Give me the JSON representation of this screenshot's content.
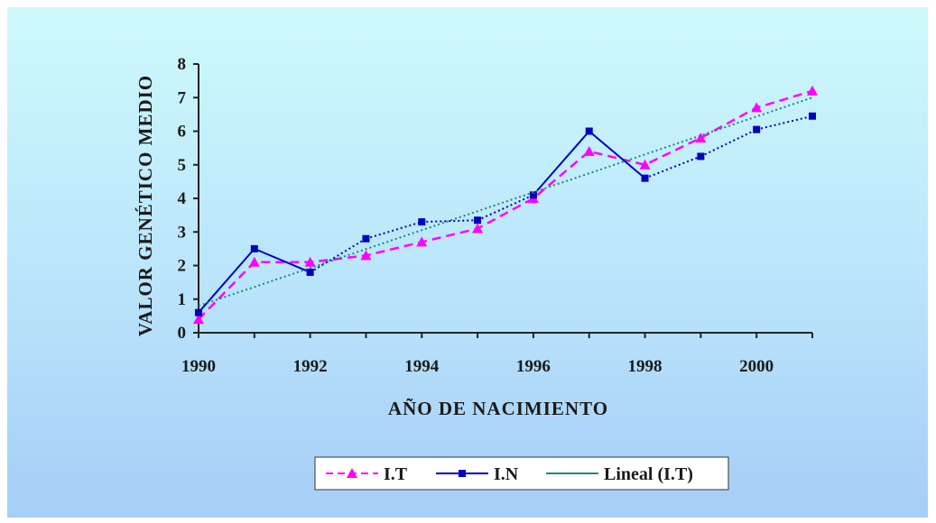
{
  "chart_data": {
    "type": "line",
    "title": "",
    "xlabel": "AÑO DE NACIMIENTO",
    "ylabel": "VALOR GENÉTICO MEDIO",
    "x": [
      1990,
      1991,
      1992,
      1993,
      1994,
      1995,
      1996,
      1997,
      1998,
      1999,
      2000,
      2001
    ],
    "x_tick_labels": [
      "1990",
      "1992",
      "1994",
      "1996",
      "1998",
      "2000"
    ],
    "y_tick_labels": [
      "0",
      "1",
      "2",
      "3",
      "4",
      "5",
      "6",
      "7",
      "8"
    ],
    "xlim": [
      1990,
      2001
    ],
    "ylim": [
      0,
      8
    ],
    "grid": false,
    "legend_position": "bottom",
    "series": [
      {
        "name": "I.T",
        "color": "#ff00ff",
        "marker": "triangle",
        "line_style": "dashed",
        "values": [
          0.4,
          2.1,
          2.1,
          2.3,
          2.7,
          3.1,
          4.0,
          5.4,
          5.0,
          5.8,
          6.7,
          7.2
        ]
      },
      {
        "name": "I.N",
        "color": "#0000c0",
        "marker": "square",
        "line_style": "mixed",
        "values": [
          0.6,
          2.5,
          1.8,
          2.8,
          3.3,
          3.35,
          4.1,
          6.0,
          4.6,
          5.25,
          6.05,
          6.45
        ]
      },
      {
        "name": "Lineal (I.T)",
        "color": "#1a8a7a",
        "marker": "none",
        "line_style": "dotted",
        "values": [
          0.8,
          7.0
        ],
        "x": [
          1990,
          2001
        ]
      }
    ]
  }
}
